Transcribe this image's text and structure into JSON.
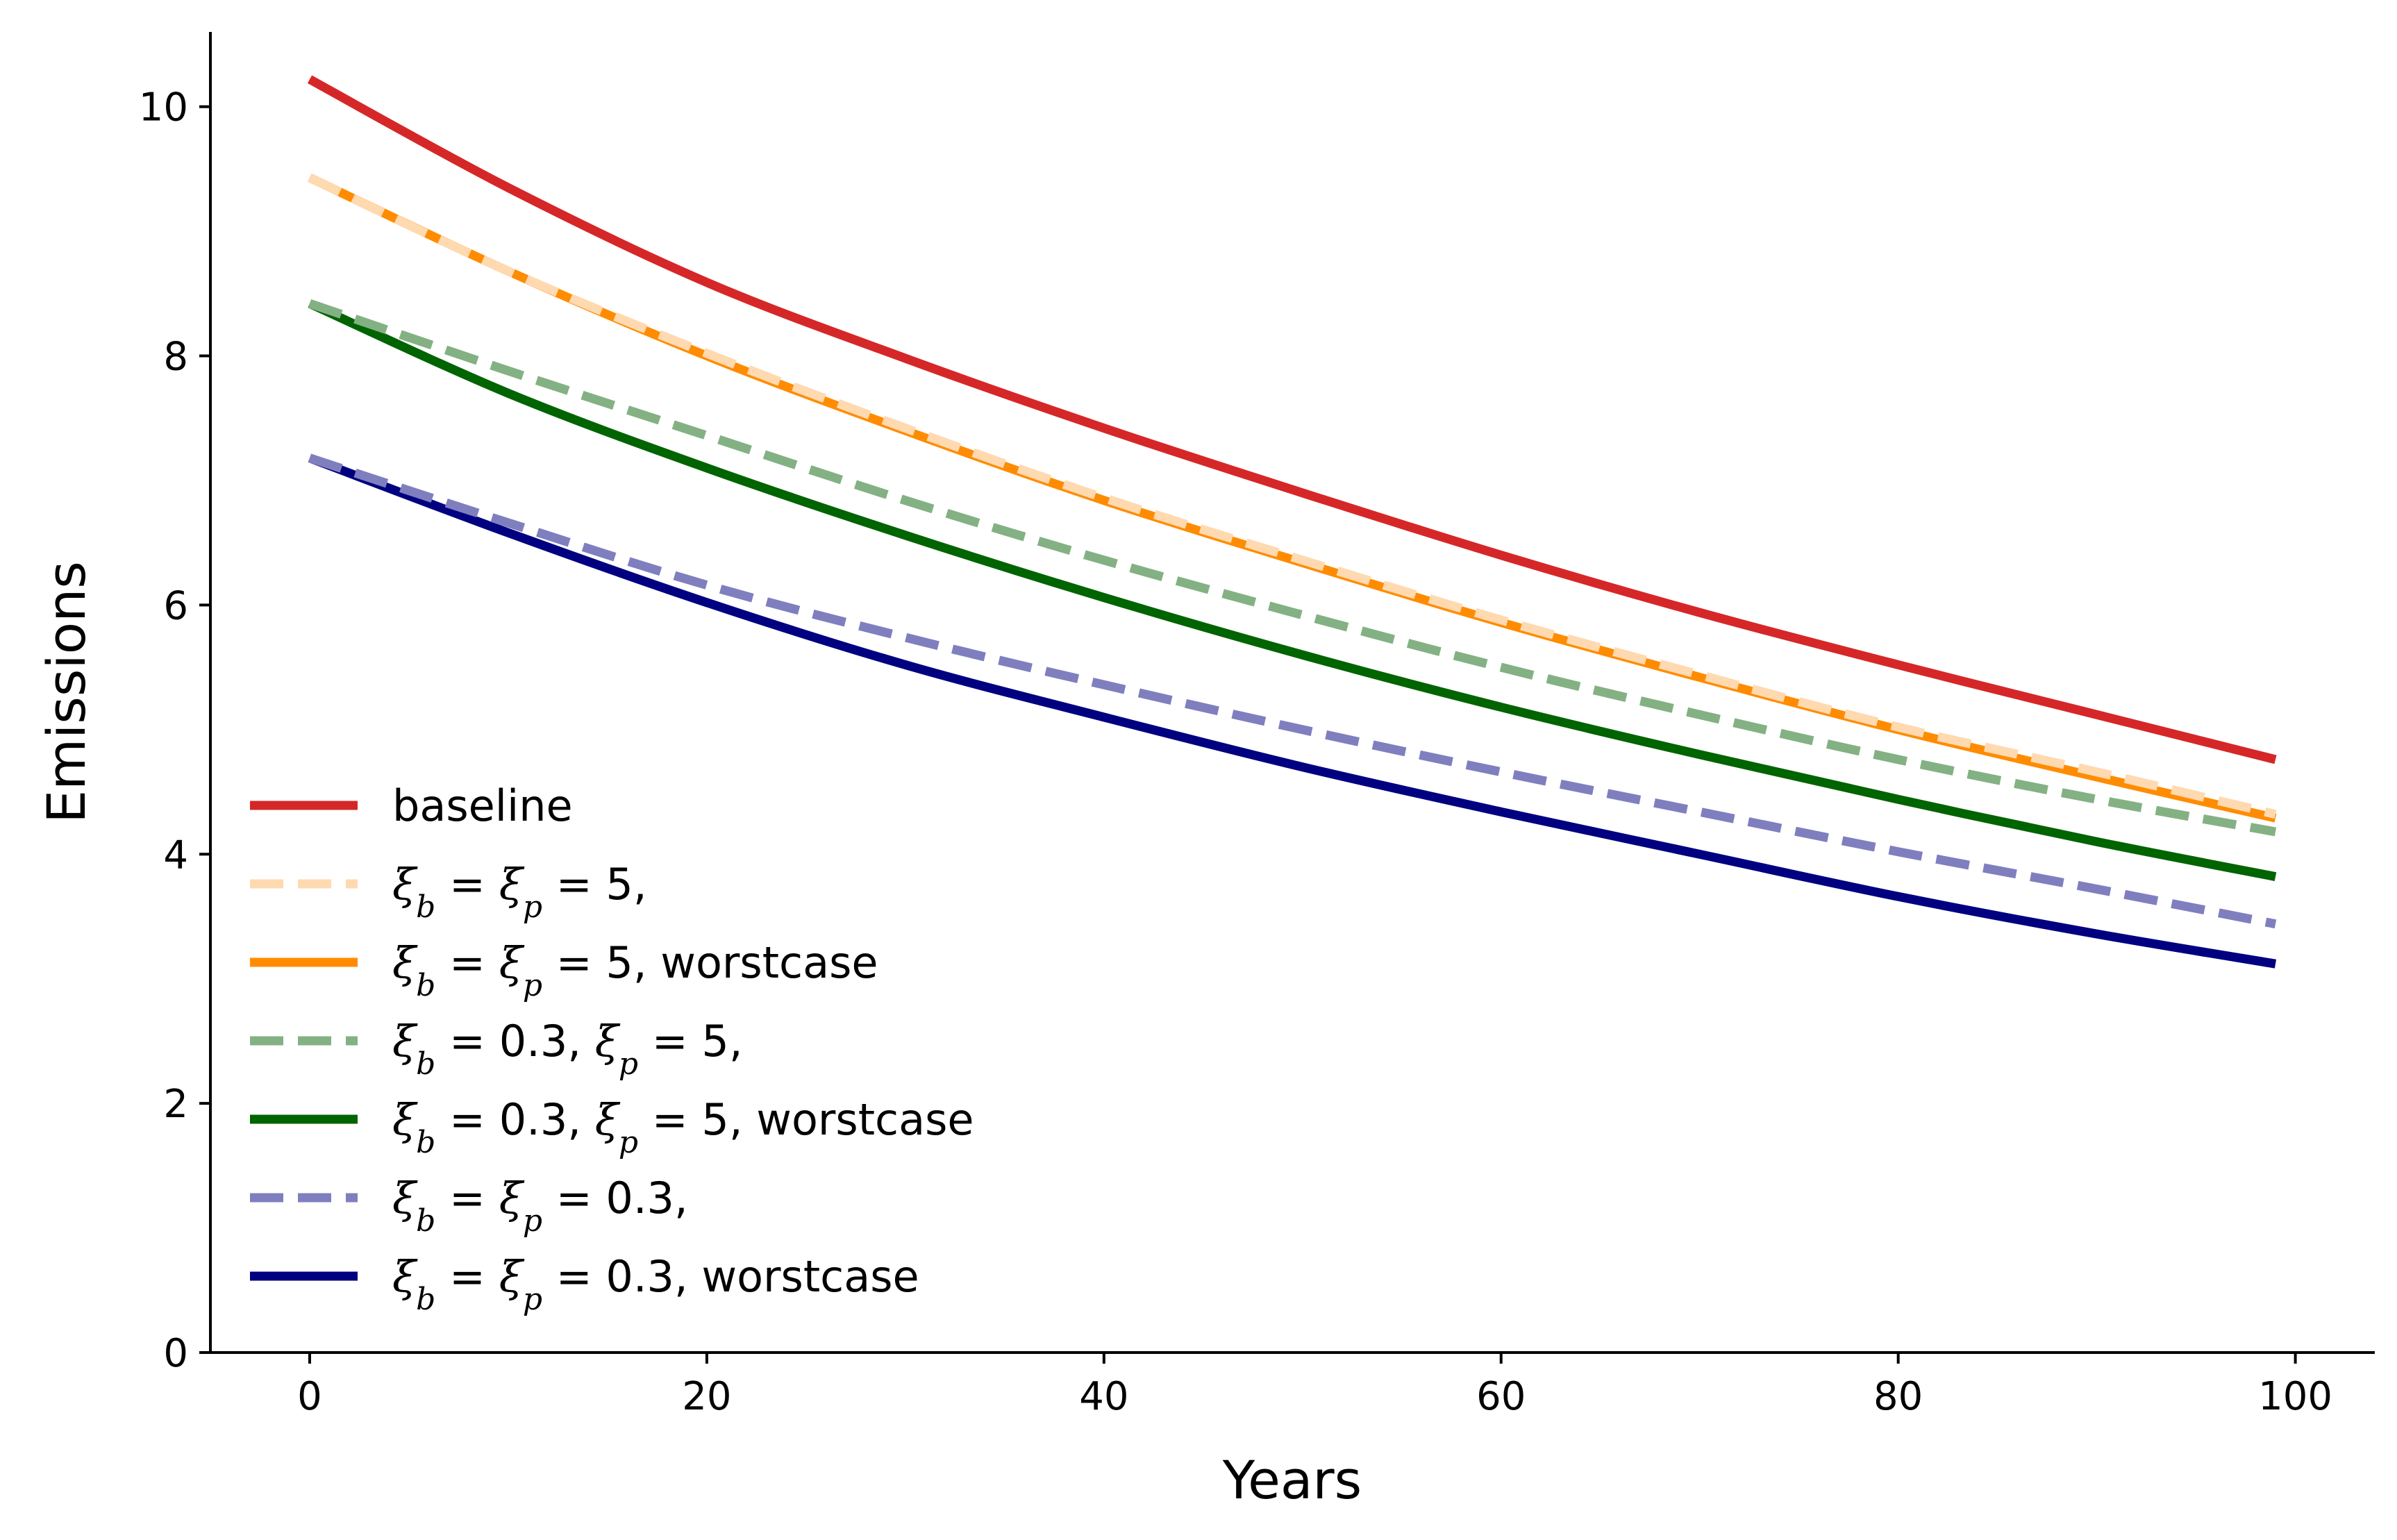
{
  "chart_data": {
    "type": "line",
    "title": "",
    "xlabel": "Years",
    "ylabel": "Emissions",
    "xlim": [
      -5,
      104
    ],
    "ylim": [
      0,
      10.6
    ],
    "xticks": [
      0,
      20,
      40,
      60,
      80,
      100
    ],
    "yticks": [
      0,
      2,
      4,
      6,
      8,
      10
    ],
    "xtick_labels": [
      "0",
      "20",
      "40",
      "60",
      "80",
      "100"
    ],
    "ytick_labels": [
      "0",
      "2",
      "4",
      "6",
      "8",
      "10"
    ],
    "grid": false,
    "legend_position": "lower-left",
    "series": [
      {
        "name": "baseline",
        "color": "#d62728",
        "style": "solid",
        "x": [
          0,
          10,
          20,
          30,
          40,
          50,
          60,
          70,
          80,
          90,
          99
        ],
        "y": [
          10.22,
          9.35,
          8.59,
          7.98,
          7.42,
          6.9,
          6.4,
          5.94,
          5.52,
          5.12,
          4.76
        ]
      },
      {
        "name": "ξ_b = ξ_p = 5,",
        "color": "#ffd9b0",
        "style": "dashed",
        "x": [
          0,
          10,
          20,
          30,
          40,
          50,
          60,
          70,
          80,
          90,
          99
        ],
        "y": [
          9.43,
          8.68,
          8.02,
          7.42,
          6.86,
          6.36,
          5.88,
          5.44,
          5.02,
          4.66,
          4.32
        ]
      },
      {
        "name": "ξ_b = ξ_p = 5, worstcase",
        "color": "#ff8c00",
        "style": "solid",
        "x": [
          0,
          10,
          20,
          30,
          40,
          50,
          60,
          70,
          80,
          90,
          99
        ],
        "y": [
          9.43,
          8.68,
          8.0,
          7.4,
          6.84,
          6.34,
          5.86,
          5.42,
          5.0,
          4.62,
          4.29
        ]
      },
      {
        "name": "ξ_b = 0.3, ξ_p = 5,",
        "color": "#83b183",
        "style": "dashed",
        "x": [
          0,
          10,
          20,
          30,
          40,
          50,
          60,
          70,
          80,
          90,
          99
        ],
        "y": [
          8.42,
          7.88,
          7.36,
          6.84,
          6.36,
          5.92,
          5.5,
          5.12,
          4.76,
          4.44,
          4.18
        ]
      },
      {
        "name": "ξ_b = 0.3, ξ_p = 5, worstcase",
        "color": "#006400",
        "style": "solid",
        "x": [
          0,
          10,
          20,
          30,
          40,
          50,
          60,
          70,
          80,
          90,
          99
        ],
        "y": [
          8.42,
          7.7,
          7.1,
          6.56,
          6.06,
          5.6,
          5.18,
          4.8,
          4.44,
          4.1,
          3.82
        ]
      },
      {
        "name": "ξ_b = ξ_p = 0.3,",
        "color": "#7f7fbf",
        "style": "dashed",
        "x": [
          0,
          10,
          20,
          30,
          40,
          50,
          60,
          70,
          80,
          90,
          99
        ],
        "y": [
          7.18,
          6.66,
          6.16,
          5.74,
          5.36,
          5.0,
          4.66,
          4.34,
          4.02,
          3.72,
          3.44
        ]
      },
      {
        "name": "ξ_b = ξ_p = 0.3, worstcase",
        "color": "#000080",
        "style": "solid",
        "x": [
          0,
          10,
          20,
          30,
          40,
          50,
          60,
          70,
          80,
          90,
          99
        ],
        "y": [
          7.18,
          6.58,
          6.02,
          5.52,
          5.1,
          4.7,
          4.34,
          4.0,
          3.66,
          3.36,
          3.12
        ]
      }
    ],
    "legend": [
      {
        "base": "baseline",
        "math": false,
        "suffix": ""
      },
      {
        "base": "",
        "math": true,
        "form": "eq",
        "val": "5",
        "suffix": ","
      },
      {
        "base": "",
        "math": true,
        "form": "eq",
        "val": "5",
        "suffix": ", worstcase"
      },
      {
        "base": "",
        "math": true,
        "form": "split",
        "bval": "0.3",
        "pval": "5",
        "suffix": ","
      },
      {
        "base": "",
        "math": true,
        "form": "split",
        "bval": "0.3",
        "pval": "5",
        "suffix": ", worstcase"
      },
      {
        "base": "",
        "math": true,
        "form": "eq",
        "val": "0.3",
        "suffix": ","
      },
      {
        "base": "",
        "math": true,
        "form": "eq",
        "val": "0.3",
        "suffix": ", worstcase"
      }
    ]
  }
}
